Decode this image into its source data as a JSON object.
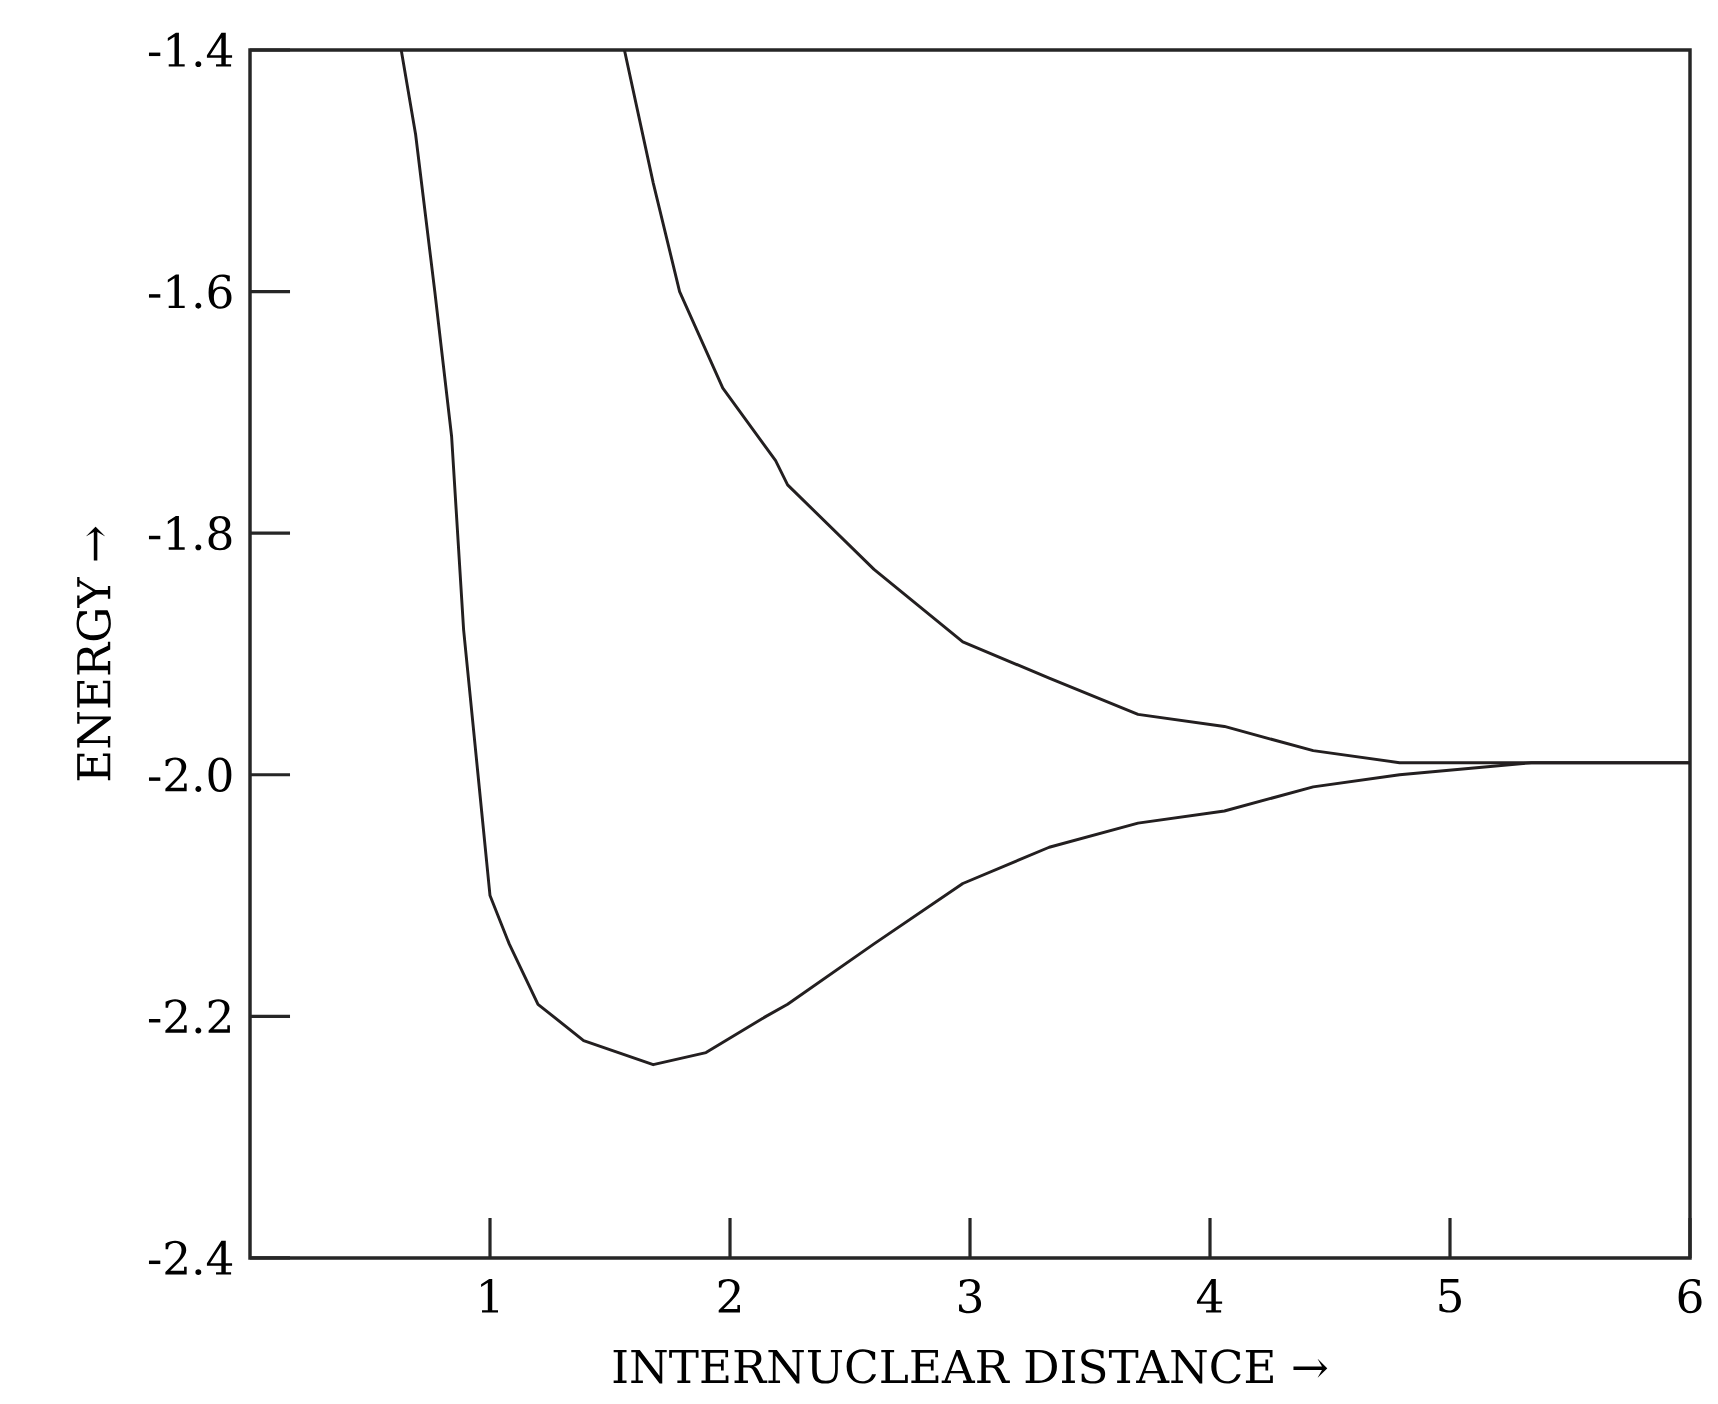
{
  "chart_data": {
    "type": "line",
    "xlabel": "INTERNUCLEAR DISTANCE →",
    "ylabel": "ENERGY →",
    "xlim": [
      0,
      6
    ],
    "ylim": [
      -2.4,
      -1.4
    ],
    "xticks": [
      1,
      2,
      3,
      4,
      5,
      6
    ],
    "yticks": [
      -2.4,
      -2.2,
      {
        "value": -2,
        "label": "-2.0"
      },
      -1.8,
      -1.6,
      -1.4
    ],
    "grid": false,
    "marker": "none",
    "line_style": "solid",
    "series": [
      {
        "color": "#231f20",
        "x": [
          0.63,
          0.69,
          0.77,
          0.84,
          0.89,
          0.95,
          1.0,
          1.08,
          1.2,
          1.39,
          1.68,
          1.9,
          2.15,
          2.24,
          2.6,
          2.97,
          3.33,
          3.7,
          4.06,
          4.43,
          4.79,
          5.34,
          6.0
        ],
        "values": [
          -1.4,
          -1.47,
          -1.6,
          -1.72,
          -1.88,
          -2.0,
          -2.1,
          -2.14,
          -2.19,
          -2.22,
          -2.24,
          -2.23,
          -2.2,
          -2.19,
          -2.14,
          -2.09,
          -2.06,
          -2.04,
          -2.03,
          -2.01,
          -2.0,
          -1.99,
          -1.99
        ]
      },
      {
        "color": "#231f20",
        "x": [
          1.56,
          1.68,
          1.79,
          1.97,
          2.19,
          2.24,
          2.6,
          2.97,
          3.33,
          3.7,
          4.06,
          4.43,
          4.79,
          5.34,
          6.0
        ],
        "values": [
          -1.4,
          -1.51,
          -1.6,
          -1.68,
          -1.74,
          -1.76,
          -1.83,
          -1.89,
          -1.92,
          -1.95,
          -1.96,
          -1.98,
          -1.99,
          -1.99,
          -1.99
        ]
      }
    ]
  }
}
